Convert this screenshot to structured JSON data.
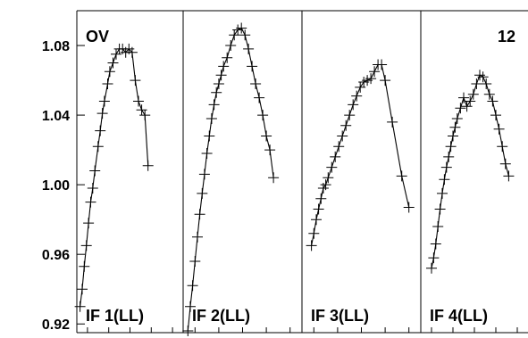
{
  "chart_data": {
    "type": "line",
    "title": "",
    "xlabel": "",
    "ylabel": "",
    "ylim": [
      0.915,
      1.1
    ],
    "yticks": [
      "0.92",
      "0.96",
      "1.00",
      "1.04",
      "1.08"
    ],
    "ytick_values": [
      0.92,
      0.96,
      1.0,
      1.04,
      1.08
    ],
    "source_label": "OV",
    "corner_number": "12",
    "grid": false,
    "marker": "plus",
    "panels": [
      {
        "label": "IF 1(LL)",
        "points": [
          [
            0.03,
            0.93
          ],
          [
            0.05,
            0.94
          ],
          [
            0.07,
            0.953
          ],
          [
            0.09,
            0.965
          ],
          [
            0.11,
            0.978
          ],
          [
            0.13,
            0.99
          ],
          [
            0.15,
            0.998
          ],
          [
            0.17,
            1.008
          ],
          [
            0.2,
            1.022
          ],
          [
            0.22,
            1.031
          ],
          [
            0.24,
            1.041
          ],
          [
            0.26,
            1.048
          ],
          [
            0.29,
            1.058
          ],
          [
            0.31,
            1.065
          ],
          [
            0.34,
            1.07
          ],
          [
            0.37,
            1.075
          ],
          [
            0.4,
            1.078
          ],
          [
            0.43,
            1.078
          ],
          [
            0.46,
            1.076
          ],
          [
            0.49,
            1.078
          ],
          [
            0.52,
            1.076
          ],
          [
            0.55,
            1.06
          ],
          [
            0.58,
            1.048
          ],
          [
            0.61,
            1.043
          ],
          [
            0.64,
            1.04
          ],
          [
            0.67,
            1.011
          ]
        ]
      },
      {
        "label": "IF 2(LL)",
        "points": [
          [
            0.04,
            0.916
          ],
          [
            0.06,
            0.93
          ],
          [
            0.08,
            0.942
          ],
          [
            0.1,
            0.956
          ],
          [
            0.12,
            0.97
          ],
          [
            0.14,
            0.983
          ],
          [
            0.16,
            0.995
          ],
          [
            0.18,
            1.006
          ],
          [
            0.2,
            1.018
          ],
          [
            0.22,
            1.028
          ],
          [
            0.24,
            1.038
          ],
          [
            0.26,
            1.046
          ],
          [
            0.28,
            1.053
          ],
          [
            0.3,
            1.058
          ],
          [
            0.32,
            1.063
          ],
          [
            0.34,
            1.068
          ],
          [
            0.37,
            1.073
          ],
          [
            0.4,
            1.08
          ],
          [
            0.43,
            1.086
          ],
          [
            0.46,
            1.089
          ],
          [
            0.49,
            1.09
          ],
          [
            0.52,
            1.086
          ],
          [
            0.55,
            1.078
          ],
          [
            0.58,
            1.068
          ],
          [
            0.61,
            1.058
          ],
          [
            0.64,
            1.05
          ],
          [
            0.67,
            1.04
          ],
          [
            0.7,
            1.028
          ],
          [
            0.73,
            1.02
          ],
          [
            0.76,
            1.004
          ]
        ]
      },
      {
        "label": "IF 3(LL)",
        "points": [
          [
            0.08,
            0.965
          ],
          [
            0.1,
            0.972
          ],
          [
            0.12,
            0.98
          ],
          [
            0.14,
            0.986
          ],
          [
            0.16,
            0.992
          ],
          [
            0.18,
            0.998
          ],
          [
            0.2,
            1.0
          ],
          [
            0.22,
            1.004
          ],
          [
            0.25,
            1.01
          ],
          [
            0.28,
            1.016
          ],
          [
            0.31,
            1.022
          ],
          [
            0.34,
            1.028
          ],
          [
            0.37,
            1.034
          ],
          [
            0.4,
            1.04
          ],
          [
            0.43,
            1.046
          ],
          [
            0.46,
            1.051
          ],
          [
            0.49,
            1.056
          ],
          [
            0.52,
            1.059
          ],
          [
            0.55,
            1.06
          ],
          [
            0.58,
            1.061
          ],
          [
            0.61,
            1.065
          ],
          [
            0.64,
            1.069
          ],
          [
            0.67,
            1.069
          ],
          [
            0.7,
            1.06
          ],
          [
            0.76,
            1.036
          ],
          [
            0.84,
            1.005
          ],
          [
            0.9,
            0.987
          ]
        ]
      },
      {
        "label": "IF 4(LL)",
        "points": [
          [
            0.1,
            0.952
          ],
          [
            0.12,
            0.958
          ],
          [
            0.14,
            0.966
          ],
          [
            0.16,
            0.976
          ],
          [
            0.18,
            0.986
          ],
          [
            0.2,
            0.995
          ],
          [
            0.22,
            1.003
          ],
          [
            0.24,
            1.01
          ],
          [
            0.26,
            1.016
          ],
          [
            0.28,
            1.022
          ],
          [
            0.3,
            1.028
          ],
          [
            0.32,
            1.033
          ],
          [
            0.34,
            1.038
          ],
          [
            0.37,
            1.044
          ],
          [
            0.4,
            1.05
          ],
          [
            0.43,
            1.045
          ],
          [
            0.46,
            1.048
          ],
          [
            0.49,
            1.052
          ],
          [
            0.52,
            1.058
          ],
          [
            0.55,
            1.063
          ],
          [
            0.58,
            1.062
          ],
          [
            0.61,
            1.058
          ],
          [
            0.64,
            1.052
          ],
          [
            0.67,
            1.048
          ],
          [
            0.7,
            1.04
          ],
          [
            0.73,
            1.032
          ],
          [
            0.76,
            1.022
          ],
          [
            0.79,
            1.012
          ],
          [
            0.82,
            1.005
          ]
        ]
      }
    ]
  }
}
